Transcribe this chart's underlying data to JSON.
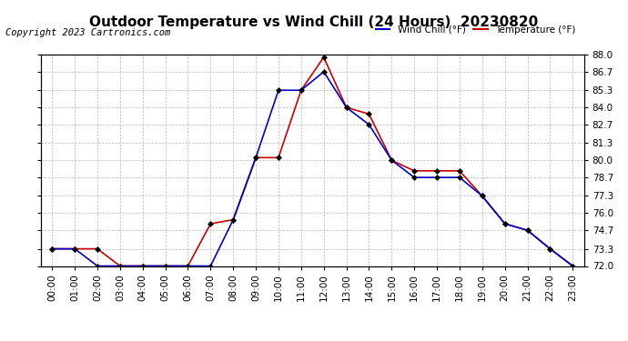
{
  "title": "Outdoor Temperature vs Wind Chill (24 Hours)  20230820",
  "copyright": "Copyright 2023 Cartronics.com",
  "legend_wind_chill": "Wind Chill (°F)",
  "legend_temperature": "Temperature (°F)",
  "x_labels": [
    "00:00",
    "01:00",
    "02:00",
    "03:00",
    "04:00",
    "05:00",
    "06:00",
    "07:00",
    "08:00",
    "09:00",
    "10:00",
    "11:00",
    "12:00",
    "13:00",
    "14:00",
    "15:00",
    "16:00",
    "17:00",
    "18:00",
    "19:00",
    "20:00",
    "21:00",
    "22:00",
    "23:00"
  ],
  "temperature": [
    73.3,
    73.3,
    73.3,
    72.0,
    72.0,
    72.0,
    72.0,
    75.2,
    75.5,
    80.2,
    80.2,
    85.3,
    87.8,
    84.0,
    83.5,
    80.0,
    79.2,
    79.2,
    79.2,
    77.3,
    75.2,
    74.7,
    73.3,
    72.0
  ],
  "wind_chill": [
    73.3,
    73.3,
    72.0,
    72.0,
    72.0,
    72.0,
    72.0,
    72.0,
    75.5,
    80.2,
    85.3,
    85.3,
    86.7,
    84.0,
    82.7,
    80.0,
    78.7,
    78.7,
    78.7,
    77.3,
    75.2,
    74.7,
    73.3,
    72.0
  ],
  "ylim_min": 72.0,
  "ylim_max": 88.0,
  "yticks": [
    72.0,
    73.3,
    74.7,
    76.0,
    77.3,
    78.7,
    80.0,
    81.3,
    82.7,
    84.0,
    85.3,
    86.7,
    88.0
  ],
  "temp_color": "#cc0000",
  "wind_color": "#0000cc",
  "bg_color": "#ffffff",
  "grid_color": "#bbbbbb",
  "title_fontsize": 11,
  "label_fontsize": 7.5,
  "copyright_fontsize": 7.5
}
